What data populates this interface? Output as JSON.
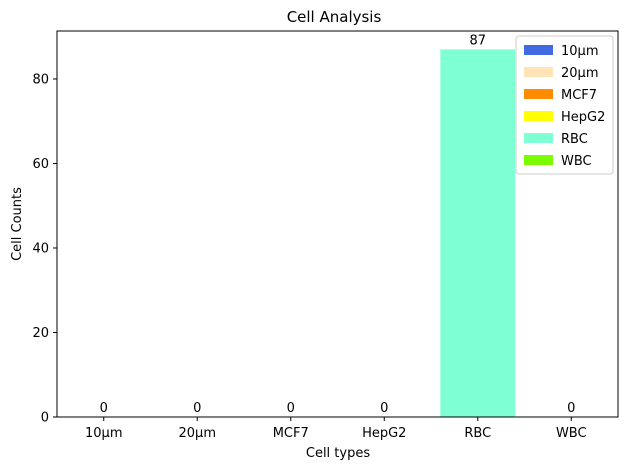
{
  "chart_data": {
    "type": "bar",
    "title": "Cell Analysis",
    "xlabel": "Cell types",
    "ylabel": "Cell Counts",
    "categories": [
      "10µm",
      "20µm",
      "MCF7",
      "HepG2",
      "RBC",
      "WBC"
    ],
    "values": [
      0,
      0,
      0,
      0,
      87,
      0
    ],
    "colors": [
      "#4169E1",
      "#FFE4B5",
      "#FF8C00",
      "#FFFF00",
      "#7FFFD4",
      "#7CFC00"
    ],
    "ylim": [
      0,
      91.35
    ],
    "yticks": [
      0,
      20,
      40,
      60,
      80
    ],
    "grid": false,
    "legend_position": "top-right",
    "legend_labels": [
      "10µm",
      "20µm",
      "MCF7",
      "HepG2",
      "RBC",
      "WBC"
    ]
  }
}
